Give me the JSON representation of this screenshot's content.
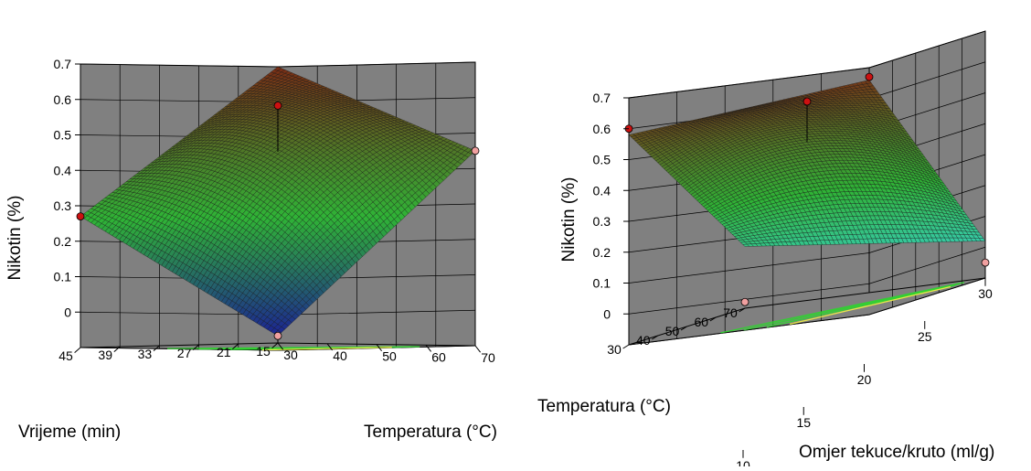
{
  "chart_data": [
    {
      "type": "surface",
      "zlabel": "Nikotin (%)",
      "xlabel": "Vrijeme (min)",
      "ylabel": "Temperatura (°C)",
      "zticks": [
        "0",
        "0.1",
        "0.2",
        "0.3",
        "0.4",
        "0.5",
        "0.6",
        "0.7"
      ],
      "xticks": [
        "45",
        "39",
        "33",
        "27",
        "21",
        "15"
      ],
      "yticks": [
        "30",
        "40",
        "50",
        "60",
        "70"
      ],
      "x_range": [
        15,
        45
      ],
      "y_range": [
        30,
        70
      ],
      "z_range": [
        -0.1,
        0.7
      ],
      "corners": {
        "x15_y30": -0.08,
        "x45_y30": 0.27,
        "x15_y70": 0.45,
        "x45_y70": 0.7
      },
      "design_points": [
        {
          "x": 30,
          "y": 50,
          "z": 0.58,
          "note": "centre"
        },
        {
          "x": 45,
          "y": 30,
          "z": 0.27
        },
        {
          "x": 15,
          "y": 30,
          "z": -0.08
        },
        {
          "x": 15,
          "y": 70,
          "z": 0.45
        }
      ],
      "colors": {
        "low": "#1a1a99",
        "mid": "#2fb336",
        "high": "#7a2c14",
        "contour_low": "#32d032",
        "contour_high": "#e8e84a",
        "point": "#cc1111",
        "point_light": "#f0a0a0"
      }
    },
    {
      "type": "surface",
      "zlabel": "Nikotin (%)",
      "xlabel": "Omjer tekuce/kruto (ml/g)",
      "ylabel": "Temperatura (°C)",
      "zticks": [
        "0",
        "0.1",
        "0.2",
        "0.3",
        "0.4",
        "0.5",
        "0.6",
        "0.7"
      ],
      "xticks": [
        "10",
        "15",
        "20",
        "25",
        "30"
      ],
      "yticks": [
        "30",
        "40",
        "50",
        "60",
        "70"
      ],
      "x_range": [
        10,
        30
      ],
      "y_range": [
        30,
        70
      ],
      "z_range": [
        -0.1,
        0.7
      ],
      "corners": {
        "x10_y30": 0.1,
        "x30_y30": 0.02,
        "x10_y70": 0.58,
        "x30_y70": 0.66
      },
      "design_points": [
        {
          "x": 20,
          "y": 50,
          "z": 0.58,
          "note": "centre"
        },
        {
          "x": 10,
          "y": 70,
          "z": 0.6
        },
        {
          "x": 30,
          "y": 70,
          "z": 0.67
        },
        {
          "x": 30,
          "y": 30,
          "z": -0.05
        },
        {
          "x": 10,
          "y": 30,
          "z": -0.08
        }
      ],
      "colors": {
        "low": "#3ad7e0",
        "mid": "#2fb336",
        "high": "#7a2c14",
        "contour_low": "#32d032",
        "contour_high": "#e8e84a",
        "point": "#cc1111",
        "point_light": "#f0a0a0"
      }
    }
  ]
}
